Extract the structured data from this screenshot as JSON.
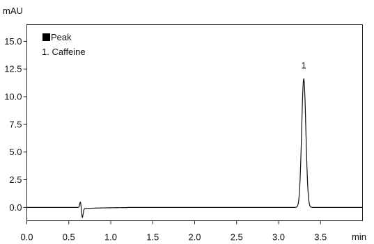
{
  "chart_data": {
    "type": "line",
    "y_unit": "mAU",
    "x_unit": "min",
    "xlim": [
      0.0,
      4.0
    ],
    "ylim": [
      -1.2,
      16.5
    ],
    "x_ticks": [
      "0.0",
      "0.5",
      "1.0",
      "1.5",
      "2.0",
      "2.5",
      "3.0",
      "3.5"
    ],
    "y_ticks": [
      "0.0",
      "2.5",
      "5.0",
      "7.5",
      "10.0",
      "12.5",
      "15.0"
    ],
    "legend": {
      "title": "Peak",
      "entries": [
        "1. Caffeine"
      ],
      "position": "top-left"
    },
    "peaks": [
      {
        "label": "1",
        "name": "Caffeine",
        "retention_time": 3.3,
        "height": 11.6,
        "width_sigma": 0.025
      }
    ],
    "baseline_disturbance": {
      "time": 0.65,
      "up": 0.5,
      "down": -0.9
    },
    "baseline_level": 0.0,
    "grid": false
  }
}
